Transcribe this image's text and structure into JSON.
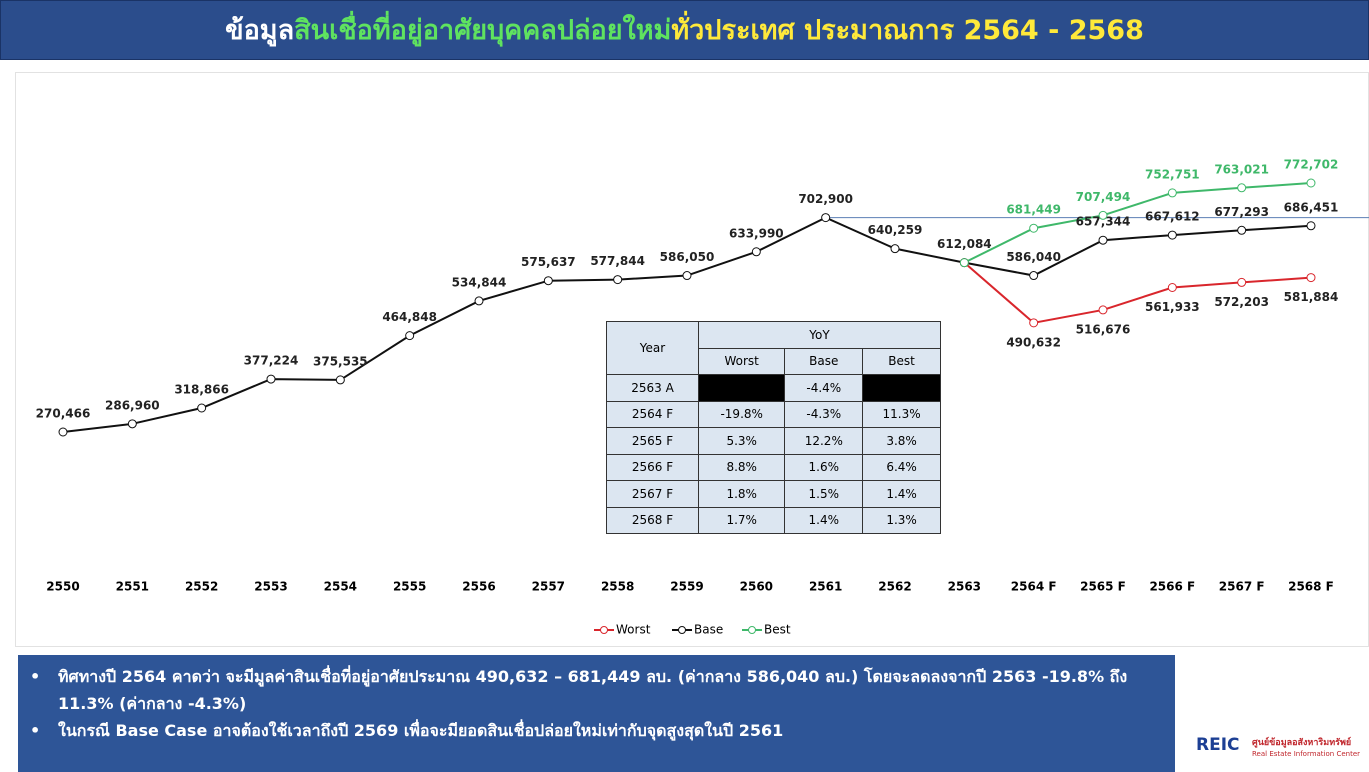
{
  "header": {
    "title_parts": [
      {
        "text": "ข้อมูล",
        "color": "#ffffff"
      },
      {
        "text": "สินเชื่อที่อยู่อาศัยบุคคลปล่อยใหม่",
        "color": "#5fe35f"
      },
      {
        "text": "ทั่วประเทศ ประมาณการ 2564 - 2568",
        "color": "#ffe93a"
      }
    ]
  },
  "chart_data": {
    "type": "line",
    "categories": [
      "2550",
      "2551",
      "2552",
      "2553",
      "2554",
      "2555",
      "2556",
      "2557",
      "2558",
      "2559",
      "2560",
      "2561",
      "2562",
      "2563",
      "2564 F",
      "2565 F",
      "2566 F",
      "2567 F",
      "2568 F"
    ],
    "series": [
      {
        "name": "Worst",
        "color": "#d9262c",
        "label_color": "#222222",
        "values": [
          null,
          null,
          null,
          null,
          null,
          null,
          null,
          null,
          null,
          null,
          null,
          null,
          null,
          612084,
          490632,
          516676,
          561933,
          572203,
          581884
        ],
        "value_labels": [
          null,
          null,
          null,
          null,
          null,
          null,
          null,
          null,
          null,
          null,
          null,
          null,
          null,
          null,
          "490,632",
          "516,676",
          "561,933",
          "572,203",
          "581,884"
        ]
      },
      {
        "name": "Base",
        "color": "#111111",
        "label_color": "#222222",
        "values": [
          270466,
          286960,
          318866,
          377224,
          375535,
          464848,
          534844,
          575637,
          577844,
          586050,
          633990,
          702900,
          640259,
          612084,
          586040,
          657344,
          667612,
          677293,
          686451
        ],
        "value_labels": [
          "270,466",
          "286,960",
          "318,866",
          "377,224",
          "375,535",
          "464,848",
          "534,844",
          "575,637",
          "577,844",
          "586,050",
          "633,990",
          "702,900",
          "640,259",
          "612,084",
          "586,040",
          "657,344",
          "667,612",
          "677,293",
          "686,451"
        ]
      },
      {
        "name": "Best",
        "color": "#3fb86a",
        "label_color": "#3fb86a",
        "values": [
          null,
          null,
          null,
          null,
          null,
          null,
          null,
          null,
          null,
          null,
          null,
          null,
          null,
          612084,
          681449,
          707494,
          752751,
          763021,
          772702
        ],
        "value_labels": [
          null,
          null,
          null,
          null,
          null,
          null,
          null,
          null,
          null,
          null,
          null,
          null,
          null,
          null,
          "681,449",
          "707,494",
          "752,751",
          "763,021",
          "772,702"
        ]
      }
    ]
  },
  "table": {
    "header": [
      "Year",
      "YoY",
      "Worst",
      "Base",
      "Best"
    ],
    "rows": [
      [
        "2563 A",
        null,
        "-4.4%",
        null
      ],
      [
        "2564 F",
        "-19.8%",
        "-4.3%",
        "11.3%"
      ],
      [
        "2565 F",
        "5.3%",
        "12.2%",
        "3.8%"
      ],
      [
        "2566 F",
        "8.8%",
        "1.6%",
        "6.4%"
      ],
      [
        "2567 F",
        "1.8%",
        "1.5%",
        "1.4%"
      ],
      [
        "2568 F",
        "1.7%",
        "1.4%",
        "1.3%"
      ]
    ]
  },
  "bullets": [
    "ทิศทางปี 2564 คาดว่า จะมีมูลค่าสินเชื่อที่อยู่อาศัยประมาณ 490,632 – 681,449 ลบ. (ค่ากลาง 586,040 ลบ.) โดยจะลดลงจากปี 2563 -19.8% ถึง 11.3% (ค่ากลาง -4.3%)",
    "ในกรณี Base Case อาจต้องใช้เวลาถึงปี 2569 เพื่อจะมียอดสินเชื่อปล่อยใหม่เท่ากับจุดสูงสุดในปี 2561"
  ],
  "logo": {
    "mark": "REIC",
    "name_th": "ศูนย์ข้อมูลอสังหาริมทรัพย์",
    "name_en": "Real Estate Information Center"
  }
}
